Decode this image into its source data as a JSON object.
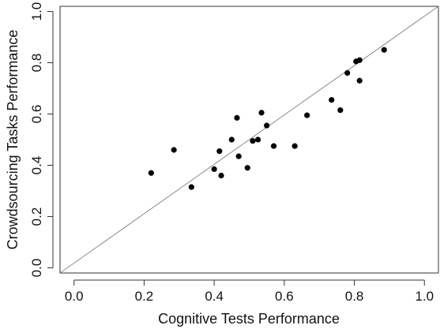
{
  "chart_data": {
    "type": "scatter",
    "title": "",
    "xlabel": "Cognitive Tests Performance",
    "ylabel": "Crowdsourcing Tasks Performance",
    "xlim": [
      -0.04,
      1.04
    ],
    "ylim": [
      -0.02,
      1.02
    ],
    "x_ticks": [
      0.0,
      0.2,
      0.4,
      0.6,
      0.8,
      1.0
    ],
    "x_tick_labels": [
      "0.0",
      "0.2",
      "0.4",
      "0.6",
      "0.8",
      "1.0"
    ],
    "y_ticks": [
      0.0,
      0.2,
      0.4,
      0.6,
      0.8,
      1.0
    ],
    "y_tick_labels": [
      "0.0",
      "0.2",
      "0.4",
      "0.6",
      "0.8",
      "1.0"
    ],
    "grid": false,
    "reference_line": {
      "from": [
        -0.04,
        -0.02
      ],
      "to": [
        1.04,
        1.02
      ],
      "color": "#888888"
    },
    "point_color": "#000000",
    "points": [
      {
        "x": 0.22,
        "y": 0.37
      },
      {
        "x": 0.285,
        "y": 0.46
      },
      {
        "x": 0.335,
        "y": 0.315
      },
      {
        "x": 0.4,
        "y": 0.385
      },
      {
        "x": 0.415,
        "y": 0.455
      },
      {
        "x": 0.42,
        "y": 0.36
      },
      {
        "x": 0.45,
        "y": 0.5
      },
      {
        "x": 0.465,
        "y": 0.585
      },
      {
        "x": 0.47,
        "y": 0.435
      },
      {
        "x": 0.495,
        "y": 0.39
      },
      {
        "x": 0.51,
        "y": 0.495
      },
      {
        "x": 0.525,
        "y": 0.5
      },
      {
        "x": 0.535,
        "y": 0.605
      },
      {
        "x": 0.55,
        "y": 0.555
      },
      {
        "x": 0.57,
        "y": 0.475
      },
      {
        "x": 0.63,
        "y": 0.475
      },
      {
        "x": 0.665,
        "y": 0.595
      },
      {
        "x": 0.735,
        "y": 0.655
      },
      {
        "x": 0.76,
        "y": 0.615
      },
      {
        "x": 0.78,
        "y": 0.76
      },
      {
        "x": 0.805,
        "y": 0.805
      },
      {
        "x": 0.815,
        "y": 0.81
      },
      {
        "x": 0.815,
        "y": 0.73
      },
      {
        "x": 0.885,
        "y": 0.85
      }
    ]
  }
}
